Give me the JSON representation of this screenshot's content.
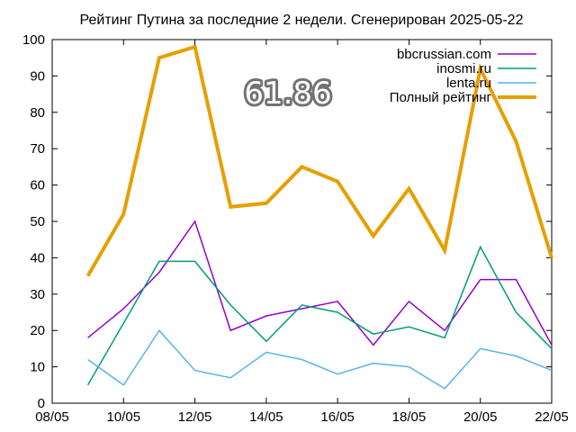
{
  "chart_data": {
    "type": "line",
    "title": "Рейтинг Путина за последние 2 недели. Сгенерирован 2025-05-22",
    "xlabel": "",
    "ylabel": "",
    "ylim": [
      0,
      100
    ],
    "y_ticks": [
      0,
      10,
      20,
      30,
      40,
      50,
      60,
      70,
      80,
      90,
      100
    ],
    "x_tick_labels": [
      "08/05",
      "10/05",
      "12/05",
      "14/05",
      "16/05",
      "18/05",
      "20/05",
      "22/05"
    ],
    "x": [
      "09/05",
      "10/05",
      "11/05",
      "12/05",
      "13/05",
      "14/05",
      "15/05",
      "16/05",
      "17/05",
      "18/05",
      "19/05",
      "20/05",
      "21/05",
      "22/05"
    ],
    "grid": false,
    "legend_position": "top-right",
    "series": [
      {
        "name": "bbcrussian.com",
        "color": "#9400d3",
        "width": 1.5,
        "values": [
          18,
          26,
          36,
          50,
          20,
          24,
          26,
          28,
          16,
          28,
          20,
          34,
          34,
          16
        ]
      },
      {
        "name": "inosmi.ru",
        "color": "#009e73",
        "width": 1.5,
        "values": [
          5,
          22,
          39,
          39,
          27,
          17,
          27,
          25,
          19,
          21,
          18,
          43,
          25,
          15
        ]
      },
      {
        "name": "lenta.ru",
        "color": "#56b4e9",
        "width": 1.5,
        "values": [
          12,
          5,
          20,
          9,
          7,
          14,
          12,
          8,
          11,
          10,
          4,
          15,
          13,
          9
        ]
      },
      {
        "name": "Полный рейтинг",
        "color": "#e69f00",
        "width": 4,
        "values": [
          35,
          52,
          95,
          98,
          54,
          55,
          65,
          61,
          46,
          59,
          42,
          92,
          72,
          40
        ]
      }
    ],
    "annotation": "61.86"
  }
}
